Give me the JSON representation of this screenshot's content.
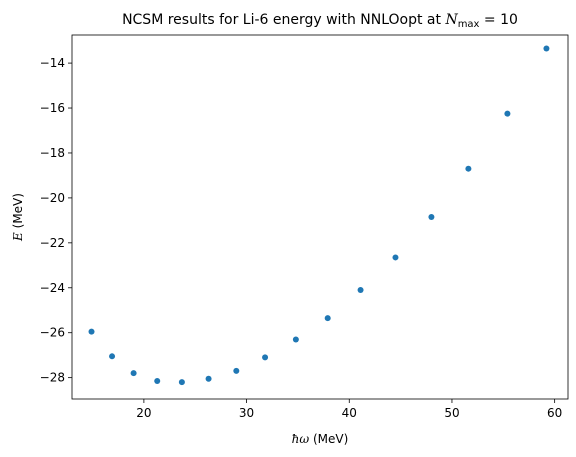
{
  "chart_data": {
    "type": "scatter",
    "title": "NCSM results for Li-6 energy with NNLOopt at ",
    "title_math": "N",
    "title_math_sub": "max",
    "title_suffix": " = 10",
    "xlabel_math": "ħω",
    "xlabel_unit": " (MeV)",
    "ylabel_math": "E",
    "ylabel_unit": " (MeV)",
    "xlim": [
      13.0,
      61.3
    ],
    "ylim": [
      -28.95,
      -12.75
    ],
    "xticks": [
      20,
      30,
      40,
      50,
      60
    ],
    "yticks": [
      -28,
      -26,
      -24,
      -22,
      -20,
      -18,
      -16,
      -14
    ],
    "grid": false,
    "color": "#1f77b4",
    "x": [
      14.9,
      16.9,
      19.0,
      21.3,
      23.7,
      26.3,
      29.0,
      31.8,
      34.8,
      37.9,
      41.1,
      44.5,
      48.0,
      51.6,
      55.4,
      59.2
    ],
    "y": [
      -25.95,
      -27.05,
      -27.8,
      -28.15,
      -28.2,
      -28.05,
      -27.7,
      -27.1,
      -26.3,
      -25.35,
      -24.1,
      -22.65,
      -20.85,
      -18.7,
      -16.25,
      -13.35
    ]
  }
}
